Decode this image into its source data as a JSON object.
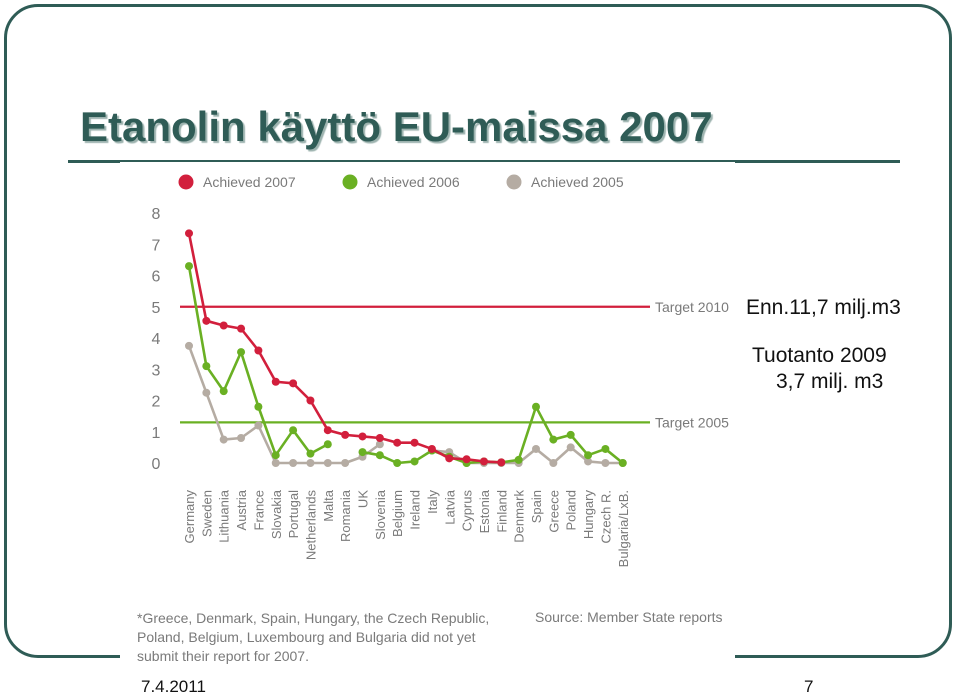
{
  "slide": {
    "title": "Etanolin käyttö EU-maissa 2007",
    "annotation_1": "Enn.11,7 milj.m3",
    "annotation_2": "Tuotanto 2009",
    "annotation_3": "3,7 milj. m3",
    "footnote": "*Greece, Denmark, Spain, Hungary, the Czech Republic, Poland, Belgium, Luxembourg and Bulgaria did not yet submit their report for 2007.",
    "source": "Source: Member State reports",
    "date": "7.4.2011",
    "page_number": "7",
    "frame_color": "#2f5c56"
  },
  "chart_data": {
    "type": "line",
    "categories": [
      "Germany",
      "Sweden",
      "Lithuania",
      "Austria",
      "France",
      "Slovakia",
      "Portugal",
      "Netherlands",
      "Malta",
      "Romania",
      "UK",
      "Slovenia",
      "Belgium",
      "Ireland",
      "Italy",
      "Latvia",
      "Cyprus",
      "Estonia",
      "Finland",
      "Denmark",
      "Spain",
      "Greece",
      "Poland",
      "Hungary",
      "Czech R.",
      "Bulgaria/LxB."
    ],
    "ylim": [
      0,
      8
    ],
    "yticks": [
      "0",
      "1",
      "2",
      "3",
      "4",
      "5",
      "6",
      "7",
      "8"
    ],
    "grid": false,
    "legend_position": "top-left",
    "series": [
      {
        "name": "Achieved 2007",
        "color": "#d21f3c",
        "values": [
          7.35,
          4.55,
          4.4,
          4.3,
          3.6,
          2.6,
          2.55,
          2.0,
          1.05,
          0.9,
          0.85,
          0.8,
          0.65,
          0.65,
          0.45,
          0.15,
          0.12,
          0.05,
          0.02,
          null,
          null,
          null,
          null,
          null,
          null,
          null
        ]
      },
      {
        "name": "Achieved 2006",
        "color": "#6ab023",
        "values": [
          6.3,
          3.1,
          2.3,
          3.55,
          1.8,
          0.25,
          1.05,
          0.3,
          0.6,
          null,
          0.35,
          0.25,
          0.0,
          0.05,
          0.4,
          0.2,
          0.0,
          0.05,
          0.02,
          0.1,
          1.8,
          0.75,
          0.9,
          0.25,
          0.45,
          0.0
        ]
      },
      {
        "name": "Achieved 2005",
        "color": "#b5aca3",
        "values": [
          3.75,
          2.25,
          0.75,
          0.8,
          1.2,
          0.0,
          0.0,
          0.0,
          0.0,
          0.0,
          0.2,
          0.6,
          null,
          null,
          0.4,
          0.35,
          0.0,
          0.0,
          0.0,
          0.0,
          0.45,
          0.0,
          0.5,
          0.05,
          0.0,
          0.0
        ]
      }
    ],
    "targets": [
      {
        "label": "Target 2010",
        "value": 5.0,
        "color": "#d21f3c"
      },
      {
        "label": "Target 2005",
        "value": 1.3,
        "color": "#6ab023"
      }
    ]
  }
}
